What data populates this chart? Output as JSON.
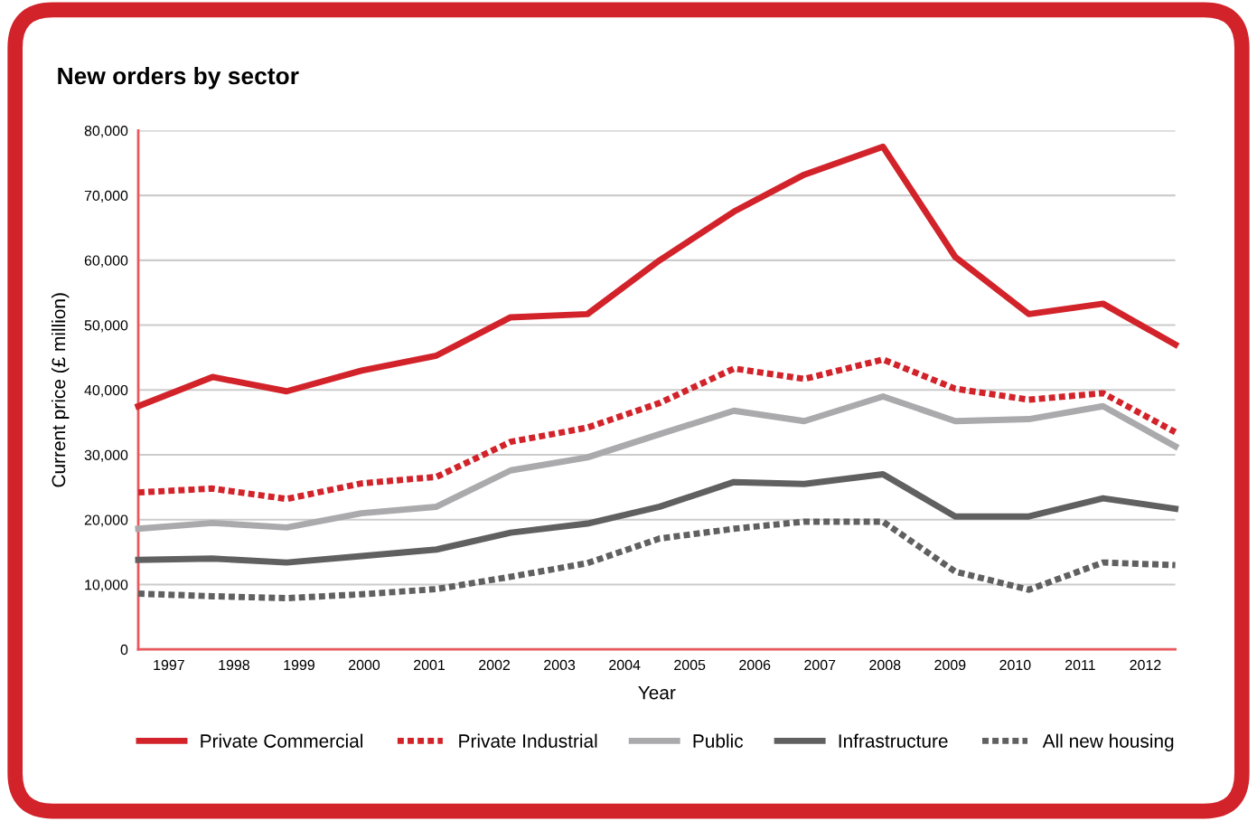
{
  "chart_data": {
    "type": "line",
    "title": "New orders by sector",
    "xlabel": "Year",
    "ylabel": "Current price (£ million)",
    "x": [
      1996.53,
      1997.67,
      1998.81,
      1999.96,
      2001.11,
      2002.25,
      2003.43,
      2004.54,
      2005.68,
      2006.76,
      2007.97,
      2009.08,
      2010.21,
      2011.35,
      2012.46
    ],
    "series": [
      {
        "name": "Private Commercial",
        "color": "#d2232a",
        "line_style": "solid",
        "values": [
          37500,
          42000,
          39800,
          43000,
          45300,
          51200,
          51700,
          60000,
          67500,
          73200,
          77500,
          60500,
          51700,
          53300,
          47000
        ]
      },
      {
        "name": "Private Industrial",
        "color": "#d2232a",
        "line_style": "dotted",
        "values": [
          24200,
          24800,
          23200,
          25600,
          26600,
          32000,
          34200,
          38000,
          43300,
          41700,
          44700,
          40200,
          38500,
          39500,
          33500
        ]
      },
      {
        "name": "Public",
        "color": "#aaaaad",
        "line_style": "solid",
        "values": [
          18600,
          19500,
          18800,
          21000,
          22000,
          27600,
          29600,
          33200,
          36800,
          35200,
          39000,
          35200,
          35500,
          37500,
          31300
        ]
      },
      {
        "name": "Infrastructure",
        "color": "#606060",
        "line_style": "solid",
        "values": [
          13800,
          14000,
          13400,
          14400,
          15400,
          18000,
          19400,
          22000,
          25800,
          25500,
          27000,
          20500,
          20500,
          23300,
          21700
        ]
      },
      {
        "name": "All new housing",
        "color": "#606060",
        "line_style": "dotted",
        "values": [
          8600,
          8200,
          7900,
          8500,
          9300,
          11200,
          13300,
          17100,
          18600,
          19700,
          19700,
          12000,
          9200,
          13400,
          13000
        ]
      }
    ],
    "xlim": [
      1996.53,
      2012.46
    ],
    "xticks": [
      1997,
      1998,
      1999,
      2000,
      2001,
      2002,
      2003,
      2004,
      2005,
      2006,
      2007,
      2008,
      2009,
      2010,
      2011,
      2012
    ],
    "ylim": [
      0,
      80000
    ],
    "yticks": [
      {
        "value": 0,
        "label": "0"
      },
      {
        "value": 10000,
        "label": "10,000"
      },
      {
        "value": 20000,
        "label": "20,000"
      },
      {
        "value": 30000,
        "label": "30,000"
      },
      {
        "value": 40000,
        "label": "40,000"
      },
      {
        "value": 50000,
        "label": "50,000"
      },
      {
        "value": 60000,
        "label": "60,000"
      },
      {
        "value": 70000,
        "label": "70,000"
      },
      {
        "value": 80000,
        "label": "80,000"
      }
    ],
    "grid": "y",
    "legend": "bottom",
    "marker": "none"
  }
}
